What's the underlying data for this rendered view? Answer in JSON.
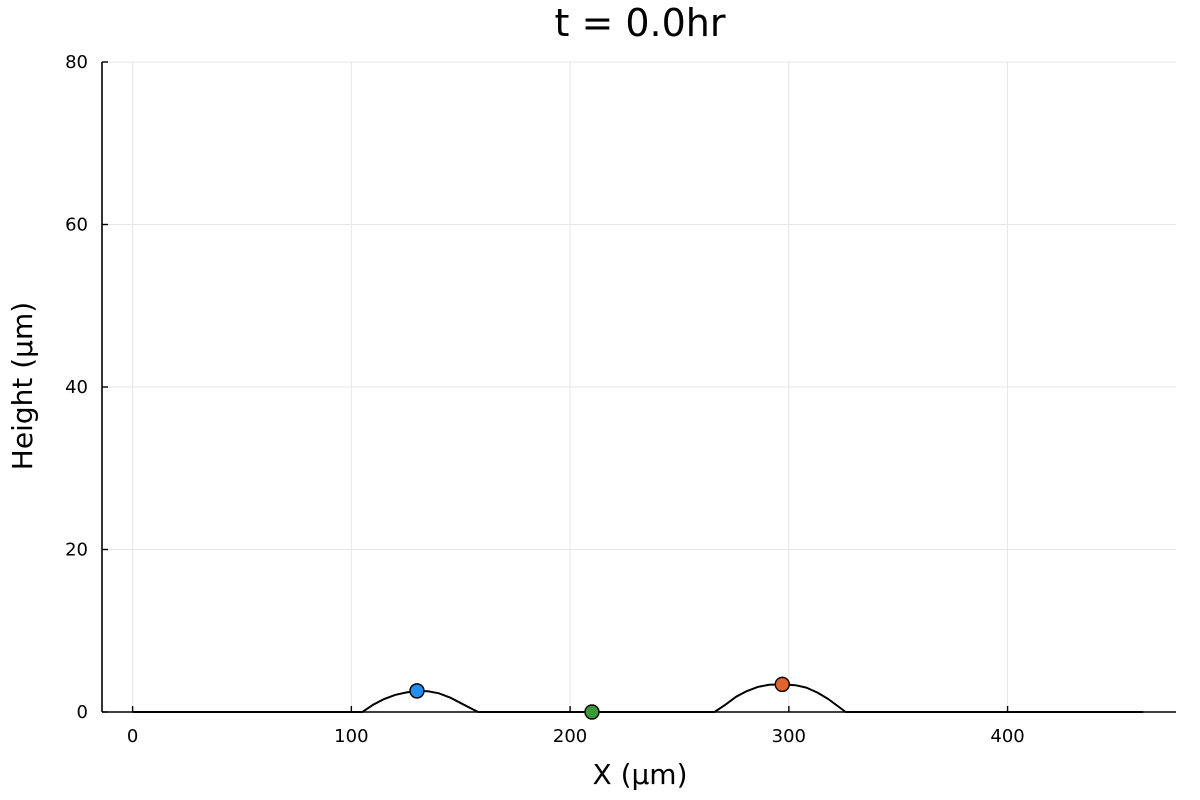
{
  "chart_data": {
    "type": "line",
    "title": "t = 0.0hr",
    "xlabel": "X (µm)",
    "ylabel": "Height (µm)",
    "xlim": [
      -14,
      477
    ],
    "ylim": [
      0,
      80
    ],
    "x_ticks": [
      0,
      100,
      200,
      300,
      400
    ],
    "y_ticks": [
      0,
      20,
      40,
      60,
      80
    ],
    "grid": true,
    "profile": {
      "color": "#000000",
      "points": [
        [
          0,
          0
        ],
        [
          105,
          0
        ],
        [
          110,
          0.9
        ],
        [
          115,
          1.6
        ],
        [
          120,
          2.1
        ],
        [
          125,
          2.4
        ],
        [
          130,
          2.6
        ],
        [
          135,
          2.55
        ],
        [
          140,
          2.3
        ],
        [
          145,
          1.8
        ],
        [
          150,
          1.1
        ],
        [
          155,
          0.4
        ],
        [
          158,
          0
        ],
        [
          266,
          0
        ],
        [
          271,
          0.9
        ],
        [
          276,
          1.9
        ],
        [
          281,
          2.6
        ],
        [
          286,
          3.1
        ],
        [
          291,
          3.35
        ],
        [
          297,
          3.4
        ],
        [
          303,
          3.3
        ],
        [
          308,
          3.0
        ],
        [
          313,
          2.4
        ],
        [
          318,
          1.6
        ],
        [
          322,
          0.8
        ],
        [
          325,
          0.2
        ],
        [
          326,
          0
        ],
        [
          462,
          0
        ]
      ]
    },
    "markers": [
      {
        "x": 130,
        "y": 2.6,
        "color": "#1f90f2"
      },
      {
        "x": 210,
        "y": 0.0,
        "color": "#3a9a3a"
      },
      {
        "x": 297,
        "y": 3.4,
        "color": "#e06430"
      }
    ]
  }
}
